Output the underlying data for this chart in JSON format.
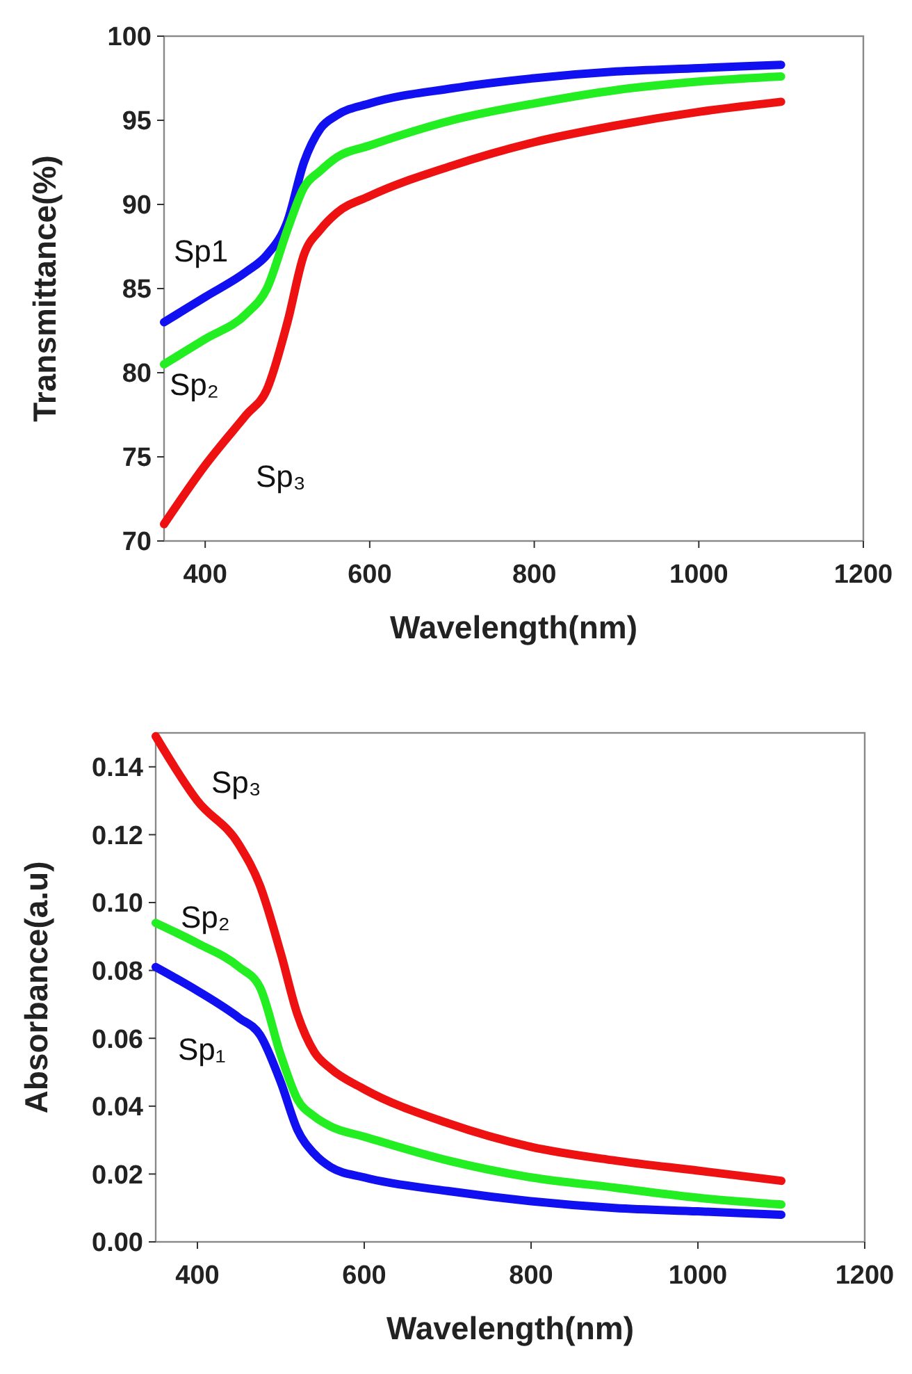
{
  "chart_data": [
    {
      "type": "line",
      "xlabel": "Wavelength(nm)",
      "ylabel": "Transmittance(%)",
      "xlim": [
        350,
        1200
      ],
      "xticks": [
        400,
        600,
        800,
        1000,
        1200
      ],
      "ylim": [
        70,
        100
      ],
      "yticks": [
        70,
        75,
        80,
        85,
        90,
        95,
        100
      ],
      "grid": false,
      "marker": "none",
      "line_style": "solid",
      "x": [
        350,
        400,
        450,
        475,
        500,
        520,
        540,
        560,
        600,
        700,
        800,
        900,
        1000,
        1100
      ],
      "series": [
        {
          "name": "Sp1",
          "color": "#1010f0",
          "values": [
            83,
            84.5,
            86,
            87,
            89,
            92.5,
            94.5,
            95.3,
            96,
            96.9,
            97.5,
            97.9,
            98.1,
            98.3
          ]
        },
        {
          "name": "Sp₂",
          "color": "#22ee22",
          "values": [
            80.5,
            82,
            83.5,
            85,
            88.5,
            91,
            92,
            92.8,
            93.5,
            95,
            96,
            96.8,
            97.3,
            97.6
          ]
        },
        {
          "name": "Sp₃",
          "color": "#ee1111",
          "values": [
            71,
            74.5,
            77.5,
            79,
            83,
            87,
            88.5,
            89.5,
            90.5,
            92.3,
            93.7,
            94.7,
            95.5,
            96.1
          ]
        }
      ]
    },
    {
      "type": "line",
      "xlabel": "Wavelength(nm)",
      "ylabel": "Absorbance(a.u)",
      "xlim": [
        350,
        1200
      ],
      "xticks": [
        400,
        600,
        800,
        1000,
        1200
      ],
      "ylim": [
        0,
        0.15
      ],
      "yticks": [
        {
          "value": 0,
          "label": "0.00"
        },
        0.02,
        0.04,
        0.06,
        0.08,
        {
          "value": 0.1,
          "label": "0.10"
        },
        0.12,
        0.14
      ],
      "grid": false,
      "marker": "none",
      "line_style": "solid",
      "x": [
        350,
        400,
        450,
        475,
        500,
        520,
        540,
        560,
        600,
        700,
        800,
        900,
        1000,
        1100
      ],
      "series": [
        {
          "name": "Sp₃",
          "color": "#ee1111",
          "values": [
            0.149,
            0.13,
            0.117,
            0.105,
            0.085,
            0.067,
            0.056,
            0.051,
            0.045,
            0.035,
            0.028,
            0.024,
            0.021,
            0.018
          ]
        },
        {
          "name": "Sp₂",
          "color": "#22ee22",
          "values": [
            0.094,
            0.088,
            0.081,
            0.075,
            0.055,
            0.042,
            0.037,
            0.034,
            0.031,
            0.024,
            0.019,
            0.016,
            0.013,
            0.011
          ]
        },
        {
          "name": "Sp₁",
          "color": "#1010f0",
          "values": [
            0.081,
            0.074,
            0.066,
            0.061,
            0.047,
            0.033,
            0.026,
            0.022,
            0.019,
            0.015,
            0.012,
            0.01,
            0.009,
            0.008
          ]
        }
      ]
    }
  ]
}
